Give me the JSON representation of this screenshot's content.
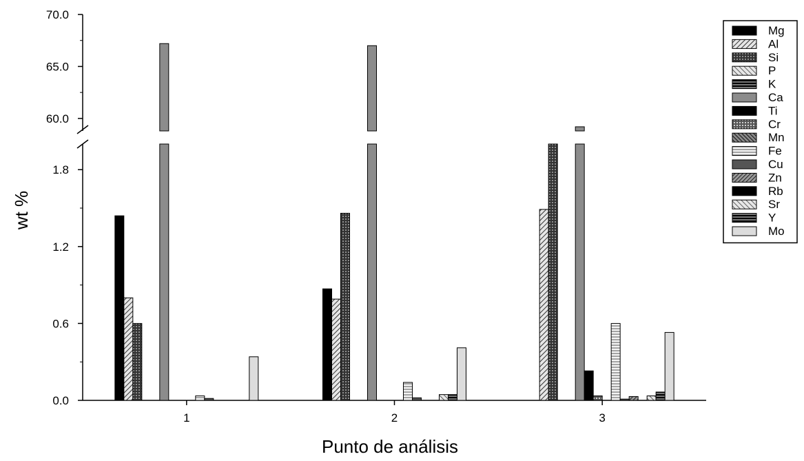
{
  "chart_data": {
    "type": "bar",
    "categories": [
      "1",
      "2",
      "3"
    ],
    "xlabel": "Punto de análisis",
    "ylabel": "wt %",
    "ylim_lower": [
      0,
      2.0
    ],
    "ylim_upper": [
      58.8,
      70.0
    ],
    "yticks_lower": [
      "0.0",
      "0.6",
      "1.2",
      "1.8"
    ],
    "yticks_upper": [
      "60.0",
      "65.0",
      "70.0"
    ],
    "axis_break": true,
    "grid": false,
    "legend_position": "right",
    "series": [
      {
        "name": "Mg",
        "values": [
          1.44,
          0.87,
          0.0
        ],
        "fill": "#000000",
        "pattern": "solid-black"
      },
      {
        "name": "Al",
        "values": [
          0.8,
          0.79,
          1.49
        ],
        "fill": "#bbbbbb",
        "pattern": "diag-right"
      },
      {
        "name": "Si",
        "values": [
          0.6,
          1.46,
          2.0
        ],
        "fill": "#555555",
        "pattern": "crosshatch-dark"
      },
      {
        "name": "P",
        "values": [
          0,
          0,
          0
        ],
        "fill": "#dddddd",
        "pattern": "diag-left"
      },
      {
        "name": "K",
        "values": [
          0,
          0,
          0
        ],
        "fill": "#444444",
        "pattern": "horiz-dark"
      },
      {
        "name": "Ca",
        "values": [
          67.2,
          67.0,
          59.2
        ],
        "fill": "#8c8c8c",
        "pattern": "solid-gray"
      },
      {
        "name": "Ti",
        "values": [
          0,
          0,
          0.23
        ],
        "fill": "#000000",
        "pattern": "solid-black"
      },
      {
        "name": "Cr",
        "values": [
          0,
          0,
          0.035
        ],
        "fill": "#888888",
        "pattern": "crosshatch"
      },
      {
        "name": "Mn",
        "values": [
          0,
          0,
          0
        ],
        "fill": "#555555",
        "pattern": "diag-left-dark"
      },
      {
        "name": "Fe",
        "values": [
          0.035,
          0.14,
          0.6
        ],
        "fill": "#eeeeee",
        "pattern": "horiz-light"
      },
      {
        "name": "Cu",
        "values": [
          0.015,
          0.02,
          0.01
        ],
        "fill": "#555555",
        "pattern": "solid-dark"
      },
      {
        "name": "Zn",
        "values": [
          0,
          0,
          0.03
        ],
        "fill": "#777777",
        "pattern": "diag-right-dark"
      },
      {
        "name": "Rb",
        "values": [
          0,
          0,
          0
        ],
        "fill": "#000000",
        "pattern": "solid-black"
      },
      {
        "name": "Sr",
        "values": [
          0,
          0.045,
          0.035
        ],
        "fill": "#aaaaaa",
        "pattern": "diag-left"
      },
      {
        "name": "Y",
        "values": [
          0,
          0.045,
          0.065
        ],
        "fill": "#444444",
        "pattern": "horiz-dark"
      },
      {
        "name": "Mo",
        "values": [
          0.34,
          0.41,
          0.53
        ],
        "fill": "#dcdcdc",
        "pattern": "solid-light"
      }
    ]
  }
}
